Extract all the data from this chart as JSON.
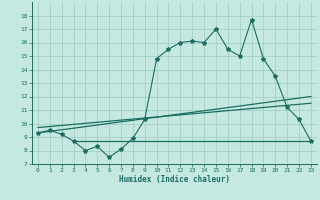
{
  "x": [
    0,
    1,
    2,
    3,
    4,
    5,
    6,
    7,
    8,
    9,
    10,
    11,
    12,
    13,
    14,
    15,
    16,
    17,
    18,
    19,
    20,
    21,
    22,
    23
  ],
  "y_main": [
    9.3,
    9.5,
    9.2,
    8.7,
    8.0,
    8.3,
    7.5,
    8.1,
    8.9,
    10.3,
    14.8,
    15.5,
    16.0,
    16.1,
    16.0,
    17.0,
    15.5,
    15.0,
    17.7,
    14.8,
    13.5,
    11.2,
    10.3,
    8.7
  ],
  "trend1_x": [
    0,
    23
  ],
  "trend1_y": [
    9.3,
    12.0
  ],
  "trend2_x": [
    0,
    23
  ],
  "trend2_y": [
    9.7,
    11.5
  ],
  "hline_x": [
    3,
    23
  ],
  "hline_y": [
    8.7,
    8.7
  ],
  "line_color": "#1a6e62",
  "bg_color": "#c5e8e0",
  "grid_color": "#9dccc0",
  "xlabel": "Humidex (Indice chaleur)",
  "xlim": [
    -0.5,
    23.5
  ],
  "ylim": [
    7,
    19
  ],
  "yticks": [
    7,
    8,
    9,
    10,
    11,
    12,
    13,
    14,
    15,
    16,
    17,
    18
  ],
  "xticks": [
    0,
    1,
    2,
    3,
    4,
    5,
    6,
    7,
    8,
    9,
    10,
    11,
    12,
    13,
    14,
    15,
    16,
    17,
    18,
    19,
    20,
    21,
    22,
    23
  ]
}
